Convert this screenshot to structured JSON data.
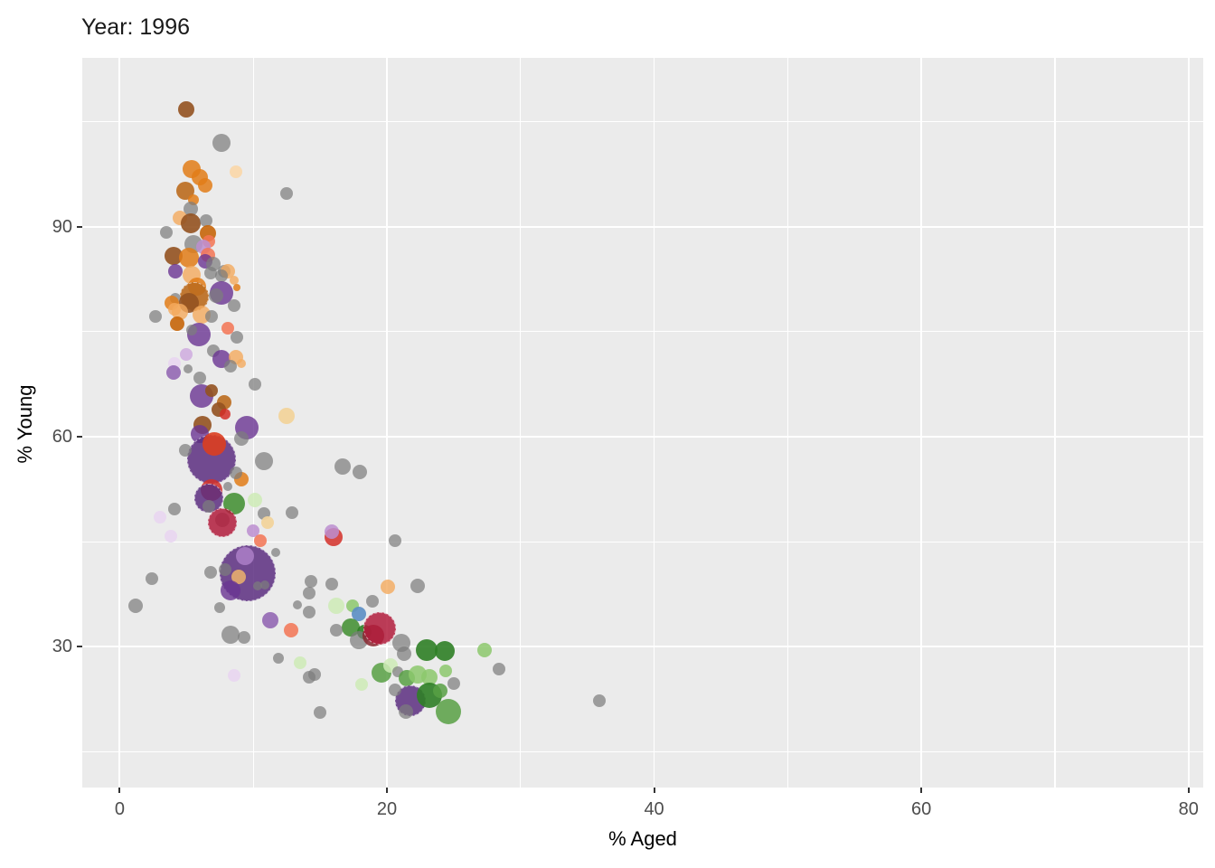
{
  "title": "Year: 1996",
  "chart_data": {
    "type": "scatter",
    "title": "Year: 1996",
    "xlabel": "% Aged",
    "ylabel": "% Young",
    "x_ticks": [
      0,
      20,
      40,
      60,
      80
    ],
    "x_minor_ticks": [
      10,
      30,
      50,
      70
    ],
    "y_ticks": [
      30,
      60,
      90
    ],
    "y_minor_ticks": [
      15,
      45,
      75,
      105
    ],
    "xlim": [
      -2.8,
      81.1
    ],
    "ylim": [
      9.9,
      114.1
    ],
    "grid": true,
    "legend": "none",
    "panel_bg": "#ebebeb",
    "grid_color": "#ffffff",
    "tick_label_color": "#4d4d4d",
    "size_encoding": "bubble radius in rendered px (size legend not shown)",
    "palette": {
      "gray": "rgba(125,125,125,0.72)",
      "orange": "rgba(226,125,23,0.85)",
      "lightOrange": "rgba(244,170,94,0.8)",
      "peach": "rgba(250,216,172,0.95)",
      "brownOrange": "rgba(187,108,30,0.9)",
      "brown": "rgba(148,82,32,0.9)",
      "darkOrange": "rgba(198,102,10,0.9)",
      "salmon": "rgba(243,116,84,0.85)",
      "red": "rgba(211,47,40,0.85)",
      "redOrange": "rgba(219,62,32,0.9)",
      "crimson": "rgba(178,28,60,0.85)",
      "darkRed": "rgba(138,40,48,0.85)",
      "purple": "rgba(106,52,146,0.8)",
      "purpleBig": "rgba(92,46,128,0.85)",
      "purpleMid": "rgba(142,96,176,0.85)",
      "lightPurple": "rgba(168,124,196,0.9)",
      "plum": "rgba(188,142,208,0.85)",
      "plumLight": "rgba(207,171,223,0.85)",
      "plumPale": "rgba(233,215,240,0.95)",
      "wheat": "rgba(242,212,156,0.95)",
      "tan": "rgba(224,168,112,0.95)",
      "green": "rgba(72,146,56,0.9)",
      "greenDark": "rgba(47,128,38,0.9)",
      "greenMid": "rgba(88,160,68,0.85)",
      "greenLight": "rgba(140,200,108,0.85)",
      "greenPale": "rgba(206,235,182,0.85)",
      "blue": "rgba(91,142,196,0.9)"
    },
    "points": [
      [
        5.0,
        106.8,
        9,
        "brown"
      ],
      [
        7.6,
        101.9,
        10,
        "gray"
      ],
      [
        8.7,
        97.8,
        7,
        "peach"
      ],
      [
        12.5,
        94.7,
        7,
        "gray"
      ],
      [
        5.4,
        98.2,
        10,
        "orange"
      ],
      [
        6.0,
        97.0,
        9,
        "orange"
      ],
      [
        6.4,
        95.9,
        8,
        "orange"
      ],
      [
        4.9,
        95.1,
        10,
        "brownOrange"
      ],
      [
        5.5,
        93.8,
        6,
        "orange"
      ],
      [
        5.3,
        92.5,
        8,
        "gray"
      ],
      [
        4.5,
        91.2,
        8,
        "lightOrange"
      ],
      [
        5.3,
        90.5,
        11,
        "brown"
      ],
      [
        6.5,
        90.8,
        7,
        "gray"
      ],
      [
        3.5,
        89.2,
        7,
        "gray"
      ],
      [
        6.6,
        89.0,
        9,
        "darkOrange"
      ],
      [
        6.7,
        87.9,
        7,
        "salmon"
      ],
      [
        5.5,
        87.5,
        10,
        "gray"
      ],
      [
        4.0,
        85.8,
        10,
        "brown"
      ],
      [
        5.2,
        85.5,
        11,
        "orange"
      ],
      [
        6.3,
        87.1,
        8,
        "plum"
      ],
      [
        6.6,
        85.9,
        8,
        "salmon"
      ],
      [
        6.4,
        85.0,
        8,
        "purple"
      ],
      [
        7.0,
        84.6,
        8,
        "gray"
      ],
      [
        4.2,
        83.6,
        8,
        "purple"
      ],
      [
        5.4,
        83.1,
        10,
        "lightOrange"
      ],
      [
        6.8,
        83.4,
        7,
        "gray"
      ],
      [
        7.8,
        83.6,
        7,
        "gray"
      ],
      [
        8.1,
        83.6,
        8,
        "lightOrange"
      ],
      [
        7.6,
        83.0,
        7,
        "gray"
      ],
      [
        5.8,
        81.4,
        10,
        "orange"
      ],
      [
        5.5,
        80.1,
        15,
        "brownOrange"
      ],
      [
        7.6,
        80.5,
        13,
        "purple"
      ],
      [
        7.2,
        80.1,
        8,
        "gray"
      ],
      [
        8.6,
        82.3,
        5,
        "lightOrange"
      ],
      [
        8.8,
        81.3,
        4,
        "orange"
      ],
      [
        4.2,
        79.7,
        6,
        "gray"
      ],
      [
        5.2,
        79.1,
        11,
        "brown"
      ],
      [
        3.9,
        79.1,
        8,
        "orange"
      ],
      [
        4.1,
        78.2,
        7,
        "lightOrange"
      ],
      [
        8.6,
        78.7,
        7,
        "gray"
      ],
      [
        4.5,
        77.8,
        9,
        "lightOrange"
      ],
      [
        6.1,
        77.4,
        10,
        "lightOrange"
      ],
      [
        6.9,
        77.2,
        7,
        "gray"
      ],
      [
        2.7,
        77.2,
        7,
        "gray"
      ],
      [
        4.3,
        76.1,
        8,
        "darkOrange"
      ],
      [
        8.1,
        75.5,
        7,
        "salmon"
      ],
      [
        5.9,
        74.6,
        13,
        "purple"
      ],
      [
        5.4,
        75.2,
        6,
        "gray"
      ],
      [
        8.8,
        74.2,
        7,
        "gray"
      ],
      [
        5.0,
        71.7,
        7,
        "plumLight"
      ],
      [
        7.0,
        72.3,
        7,
        "gray"
      ],
      [
        7.6,
        71.1,
        10,
        "purple"
      ],
      [
        8.7,
        71.4,
        8,
        "lightOrange"
      ],
      [
        8.3,
        70.1,
        7,
        "gray"
      ],
      [
        4.1,
        70.5,
        7,
        "plumPale"
      ],
      [
        4.0,
        69.2,
        8,
        "purpleMid"
      ],
      [
        5.1,
        69.7,
        5,
        "gray"
      ],
      [
        9.1,
        70.5,
        5,
        "lightOrange"
      ],
      [
        6.0,
        68.4,
        7,
        "gray"
      ],
      [
        10.1,
        67.5,
        7,
        "gray"
      ],
      [
        6.1,
        65.8,
        13,
        "purple"
      ],
      [
        6.9,
        66.6,
        7,
        "brown"
      ],
      [
        7.8,
        64.9,
        8,
        "brownOrange"
      ],
      [
        7.4,
        63.9,
        8,
        "brown"
      ],
      [
        7.9,
        63.2,
        6,
        "red"
      ],
      [
        12.5,
        63.0,
        9,
        "wheat"
      ],
      [
        6.2,
        61.7,
        10,
        "brown"
      ],
      [
        9.5,
        61.3,
        13,
        "purple"
      ],
      [
        9.1,
        59.7,
        8,
        "gray"
      ],
      [
        6.0,
        60.4,
        10,
        "purple"
      ],
      [
        6.8,
        56.9,
        26,
        "purpleBig"
      ],
      [
        7.1,
        59.0,
        13,
        "redOrange"
      ],
      [
        4.9,
        58.1,
        7,
        "gray"
      ],
      [
        10.8,
        56.5,
        10,
        "gray"
      ],
      [
        9.1,
        53.9,
        8,
        "orange"
      ],
      [
        8.7,
        54.8,
        7,
        "gray"
      ],
      [
        6.9,
        52.4,
        12,
        "red"
      ],
      [
        6.6,
        51.4,
        15,
        "purpleBig"
      ],
      [
        8.1,
        52.9,
        5,
        "gray"
      ],
      [
        8.6,
        50.5,
        12,
        "green"
      ],
      [
        10.1,
        51.0,
        8,
        "greenPale"
      ],
      [
        6.7,
        50.1,
        7,
        "gray"
      ],
      [
        4.1,
        49.7,
        7,
        "gray"
      ],
      [
        3.0,
        48.5,
        7,
        "plumPale"
      ],
      [
        7.7,
        48.1,
        8,
        "gray"
      ],
      [
        7.6,
        47.9,
        15,
        "crimson"
      ],
      [
        10.8,
        49.0,
        7,
        "gray"
      ],
      [
        12.9,
        49.2,
        7,
        "gray"
      ],
      [
        11.1,
        47.7,
        7,
        "wheat"
      ],
      [
        10.0,
        46.6,
        7,
        "plum"
      ],
      [
        3.8,
        45.8,
        7,
        "plumPale"
      ],
      [
        10.5,
        45.2,
        7,
        "salmon"
      ],
      [
        11.7,
        43.5,
        5,
        "gray"
      ],
      [
        16.0,
        45.7,
        10,
        "red"
      ],
      [
        15.9,
        46.5,
        8,
        "plum"
      ],
      [
        20.6,
        45.2,
        7,
        "gray"
      ],
      [
        16.7,
        55.8,
        9,
        "gray"
      ],
      [
        18.0,
        54.9,
        8,
        "gray"
      ],
      [
        9.5,
        40.6,
        30,
        "purpleBig"
      ],
      [
        9.4,
        43.0,
        10,
        "lightPurple"
      ],
      [
        7.9,
        41.0,
        7,
        "gray"
      ],
      [
        2.4,
        39.7,
        7,
        "gray"
      ],
      [
        6.8,
        40.6,
        7,
        "gray"
      ],
      [
        8.9,
        40.0,
        8,
        "tan"
      ],
      [
        8.3,
        38.1,
        11,
        "purple"
      ],
      [
        10.3,
        38.7,
        5,
        "gray"
      ],
      [
        10.9,
        38.8,
        5,
        "gray"
      ],
      [
        14.3,
        39.4,
        7,
        "gray"
      ],
      [
        14.2,
        37.7,
        7,
        "gray"
      ],
      [
        15.9,
        38.9,
        7,
        "gray"
      ],
      [
        20.1,
        38.6,
        8,
        "lightOrange"
      ],
      [
        22.3,
        38.7,
        8,
        "gray"
      ],
      [
        1.2,
        35.9,
        8,
        "gray"
      ],
      [
        13.3,
        36.0,
        5,
        "gray"
      ],
      [
        14.2,
        35.0,
        7,
        "gray"
      ],
      [
        16.2,
        35.9,
        9,
        "greenPale"
      ],
      [
        17.4,
        35.9,
        7,
        "greenLight"
      ],
      [
        18.9,
        36.5,
        7,
        "gray"
      ],
      [
        17.9,
        34.7,
        8,
        "blue"
      ],
      [
        17.3,
        32.8,
        10,
        "green"
      ],
      [
        16.2,
        32.4,
        7,
        "gray"
      ],
      [
        18.3,
        32.1,
        8,
        "greenDark"
      ],
      [
        17.9,
        31.0,
        10,
        "gray"
      ],
      [
        19.0,
        31.6,
        12,
        "darkRed"
      ],
      [
        19.4,
        32.8,
        17,
        "crimson"
      ],
      [
        11.3,
        33.8,
        9,
        "purpleMid"
      ],
      [
        12.8,
        32.4,
        8,
        "salmon"
      ],
      [
        8.3,
        31.7,
        10,
        "gray"
      ],
      [
        9.3,
        31.3,
        7,
        "gray"
      ],
      [
        7.5,
        35.6,
        6,
        "gray"
      ],
      [
        21.1,
        30.5,
        10,
        "gray"
      ],
      [
        21.3,
        29.0,
        8,
        "gray"
      ],
      [
        23.0,
        29.5,
        12,
        "greenDark"
      ],
      [
        24.3,
        29.4,
        11,
        "greenDark"
      ],
      [
        27.3,
        29.5,
        8,
        "greenLight"
      ],
      [
        28.4,
        26.8,
        7,
        "gray"
      ],
      [
        13.5,
        27.7,
        7,
        "greenPale"
      ],
      [
        14.2,
        25.7,
        7,
        "gray"
      ],
      [
        14.6,
        26.1,
        7,
        "gray"
      ],
      [
        19.6,
        26.3,
        11,
        "greenMid"
      ],
      [
        20.3,
        27.3,
        8,
        "greenPale"
      ],
      [
        20.8,
        26.4,
        6,
        "gray"
      ],
      [
        21.5,
        25.5,
        9,
        "greenMid"
      ],
      [
        22.3,
        26.0,
        10,
        "greenLight"
      ],
      [
        23.2,
        25.7,
        9,
        "greenLight"
      ],
      [
        24.4,
        26.6,
        7,
        "greenLight"
      ],
      [
        11.9,
        28.4,
        6,
        "gray"
      ],
      [
        18.1,
        24.6,
        7,
        "greenPale"
      ],
      [
        25.0,
        24.7,
        7,
        "gray"
      ],
      [
        8.6,
        25.9,
        7,
        "plumPale"
      ],
      [
        21.7,
        22.4,
        16,
        "purpleBig"
      ],
      [
        23.2,
        23.1,
        14,
        "greenDark"
      ],
      [
        24.0,
        23.7,
        8,
        "greenMid"
      ],
      [
        24.6,
        20.7,
        14,
        "greenMid"
      ],
      [
        20.6,
        23.9,
        7,
        "gray"
      ],
      [
        21.4,
        20.7,
        8,
        "gray"
      ],
      [
        15.0,
        20.6,
        7,
        "gray"
      ],
      [
        35.9,
        22.3,
        7,
        "gray"
      ]
    ]
  }
}
